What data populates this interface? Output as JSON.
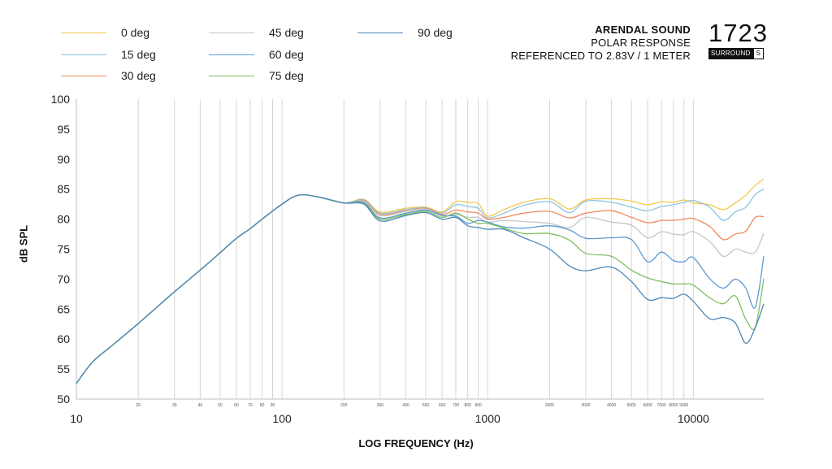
{
  "brand": {
    "title": "ARENDAL SOUND",
    "subtitle_1": "POLAR RESPONSE",
    "subtitle_2": "REFERENCED TO 2.83V / 1 METER",
    "model": "1723",
    "badge_text": "SURROUND",
    "badge_letter": "S"
  },
  "chart_data": {
    "type": "line",
    "xlabel": "LOG FREQUENCY (Hz)",
    "ylabel": "dB SPL",
    "xscale": "log",
    "xlim": [
      10,
      22000
    ],
    "ylim": [
      50,
      100
    ],
    "grid": "vertical",
    "legend_position": "top-left",
    "y_ticks": [
      50,
      55,
      60,
      65,
      70,
      75,
      80,
      85,
      90,
      95,
      100
    ],
    "x_major_ticks": [
      {
        "value": 10,
        "label": "10"
      },
      {
        "value": 100,
        "label": "100"
      },
      {
        "value": 1000,
        "label": "1000"
      },
      {
        "value": 10000,
        "label": "10000"
      }
    ],
    "x_minor_ticks": [
      {
        "value": 20,
        "label": "20"
      },
      {
        "value": 30,
        "label": "30"
      },
      {
        "value": 40,
        "label": "40"
      },
      {
        "value": 50,
        "label": "50"
      },
      {
        "value": 60,
        "label": "60"
      },
      {
        "value": 70,
        "label": "70"
      },
      {
        "value": 80,
        "label": "80"
      },
      {
        "value": 90,
        "label": "90"
      },
      {
        "value": 200,
        "label": "200"
      },
      {
        "value": 300,
        "label": "300"
      },
      {
        "value": 400,
        "label": "400"
      },
      {
        "value": 500,
        "label": "500"
      },
      {
        "value": 600,
        "label": "600"
      },
      {
        "value": 700,
        "label": "700"
      },
      {
        "value": 800,
        "label": "800"
      },
      {
        "value": 900,
        "label": "900"
      },
      {
        "value": 2000,
        "label": "2000"
      },
      {
        "value": 3000,
        "label": "3000"
      },
      {
        "value": 4000,
        "label": "4000"
      },
      {
        "value": 5000,
        "label": "5000"
      },
      {
        "value": 6000,
        "label": "6000"
      },
      {
        "value": 7000,
        "label": "7000"
      },
      {
        "value": 8000,
        "label": "8000"
      },
      {
        "value": 9000,
        "label": "9000"
      }
    ],
    "x": [
      10,
      12,
      15,
      20,
      30,
      40,
      50,
      60,
      70,
      80,
      100,
      120,
      150,
      200,
      250,
      300,
      400,
      500,
      600,
      700,
      800,
      900,
      1000,
      1200,
      1500,
      2000,
      2500,
      3000,
      4000,
      5000,
      6000,
      7000,
      8000,
      9000,
      10000,
      12000,
      14000,
      16000,
      18000,
      20000,
      22000
    ],
    "series": [
      {
        "name": "0 deg",
        "color": "#f2c84b",
        "values": [
          52.6,
          56.2,
          59.0,
          62.6,
          67.9,
          71.5,
          74.4,
          76.8,
          78.4,
          80.0,
          82.5,
          84.0,
          83.7,
          82.7,
          83.3,
          81.2,
          81.8,
          82.0,
          81.2,
          82.9,
          82.8,
          82.6,
          80.5,
          81.6,
          82.8,
          83.4,
          81.7,
          83.2,
          83.4,
          83.0,
          82.4,
          82.9,
          82.8,
          83.2,
          82.7,
          82.4,
          81.6,
          82.7,
          84.0,
          85.6,
          86.7
        ]
      },
      {
        "name": "15 deg",
        "color": "#8ec3e0",
        "values": [
          52.6,
          56.2,
          59.0,
          62.6,
          67.9,
          71.5,
          74.4,
          76.8,
          78.4,
          80.0,
          82.5,
          84.0,
          83.7,
          82.7,
          83.2,
          81.0,
          81.6,
          81.9,
          81.0,
          82.4,
          82.1,
          81.8,
          80.2,
          81.0,
          82.3,
          82.9,
          81.1,
          83.0,
          82.8,
          82.0,
          81.4,
          82.1,
          82.4,
          82.8,
          83.1,
          82.0,
          79.8,
          81.2,
          82.0,
          84.1,
          85.0
        ]
      },
      {
        "name": "30 deg",
        "color": "#f08a5d",
        "values": [
          52.6,
          56.2,
          59.0,
          62.6,
          67.9,
          71.5,
          74.4,
          76.8,
          78.4,
          80.0,
          82.5,
          84.0,
          83.7,
          82.7,
          83.1,
          80.8,
          81.4,
          81.8,
          80.8,
          81.5,
          81.2,
          81.0,
          80.0,
          80.3,
          81.0,
          81.3,
          80.2,
          81.0,
          81.4,
          80.3,
          79.4,
          79.8,
          79.8,
          80.0,
          80.1,
          78.8,
          76.6,
          77.5,
          78.0,
          80.3,
          80.4
        ]
      },
      {
        "name": "45 deg",
        "color": "#c6c6c6",
        "values": [
          52.6,
          56.2,
          59.0,
          62.6,
          67.9,
          71.5,
          74.4,
          76.8,
          78.4,
          80.0,
          82.5,
          84.0,
          83.7,
          82.7,
          83.0,
          80.6,
          81.3,
          81.7,
          80.6,
          80.8,
          80.3,
          80.3,
          79.5,
          79.8,
          79.6,
          79.3,
          78.6,
          80.3,
          79.5,
          79.0,
          76.9,
          77.9,
          77.5,
          77.4,
          77.9,
          76.3,
          73.8,
          75.0,
          74.5,
          74.5,
          77.6
        ]
      },
      {
        "name": "60 deg",
        "color": "#5a9bd3",
        "values": [
          52.6,
          56.2,
          59.0,
          62.6,
          67.9,
          71.5,
          74.4,
          76.8,
          78.4,
          80.0,
          82.5,
          84.0,
          83.7,
          82.7,
          82.8,
          80.2,
          81.0,
          81.5,
          80.6,
          80.5,
          79.3,
          79.8,
          79.5,
          78.7,
          78.5,
          78.9,
          78.2,
          76.8,
          76.9,
          76.6,
          72.9,
          74.5,
          73.1,
          72.9,
          73.6,
          70.1,
          68.5,
          70.0,
          68.5,
          65.3,
          73.8
        ]
      },
      {
        "name": "75 deg",
        "color": "#7fbf5f",
        "values": [
          52.6,
          56.2,
          59.0,
          62.6,
          67.9,
          71.5,
          74.4,
          76.8,
          78.4,
          80.0,
          82.5,
          84.0,
          83.7,
          82.7,
          82.6,
          80.0,
          80.8,
          81.3,
          80.3,
          81.0,
          80.0,
          79.3,
          79.3,
          78.5,
          77.6,
          77.6,
          76.5,
          74.3,
          73.8,
          71.5,
          70.2,
          69.6,
          69.2,
          69.2,
          69.0,
          66.9,
          65.9,
          67.2,
          63.3,
          62.0,
          70.1
        ]
      },
      {
        "name": "90 deg",
        "color": "#4b87b8",
        "values": [
          52.6,
          56.2,
          59.0,
          62.6,
          67.9,
          71.5,
          74.4,
          76.8,
          78.4,
          80.0,
          82.5,
          84.0,
          83.7,
          82.7,
          82.5,
          79.7,
          80.6,
          81.1,
          80.0,
          80.3,
          78.9,
          78.6,
          78.3,
          78.3,
          76.9,
          75.0,
          72.2,
          71.4,
          72.0,
          69.6,
          66.6,
          66.9,
          66.8,
          67.5,
          66.3,
          63.4,
          63.6,
          62.7,
          59.3,
          61.9,
          65.9
        ]
      }
    ],
    "legend": [
      {
        "label": "0 deg",
        "color": "#f2c84b"
      },
      {
        "label": "15 deg",
        "color": "#8ec3e0"
      },
      {
        "label": "30 deg",
        "color": "#f08a5d"
      },
      {
        "label": "45 deg",
        "color": "#c6c6c6"
      },
      {
        "label": "60 deg",
        "color": "#5a9bd3"
      },
      {
        "label": "75 deg",
        "color": "#7fbf5f"
      },
      {
        "label": "90 deg",
        "color": "#4b87b8"
      }
    ]
  }
}
